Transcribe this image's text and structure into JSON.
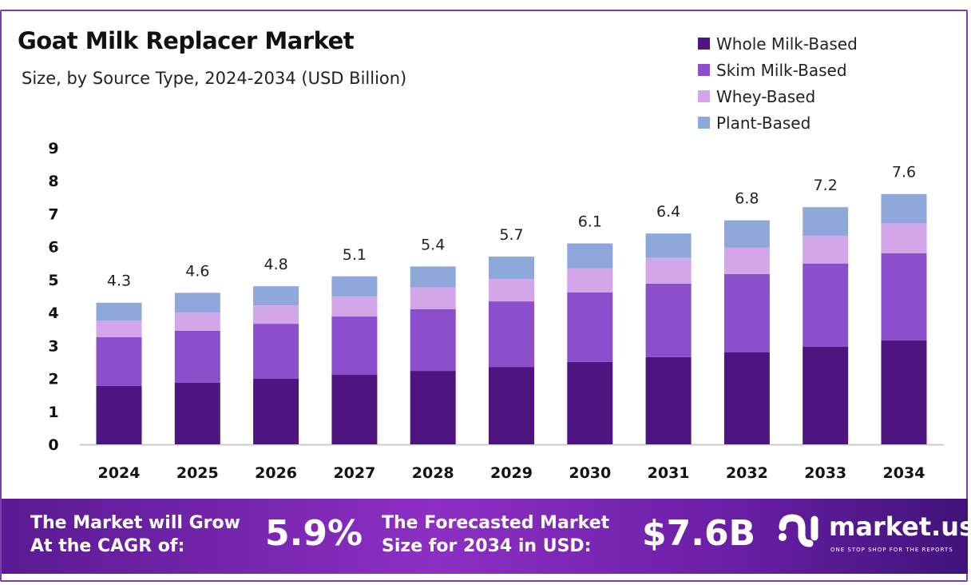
{
  "chart_data": {
    "type": "bar",
    "stacked": true,
    "title": "Goat Milk Replacer Market",
    "subtitle": "Size, by Source Type, 2024-2034 (USD Billion)",
    "categories": [
      "2024",
      "2025",
      "2026",
      "2027",
      "2028",
      "2029",
      "2030",
      "2031",
      "2032",
      "2033",
      "2034"
    ],
    "series": [
      {
        "name": "Whole Milk-Based",
        "color": "#4e1580",
        "values": [
          1.77,
          1.87,
          1.99,
          2.11,
          2.23,
          2.35,
          2.5,
          2.65,
          2.79,
          2.96,
          3.16
        ]
      },
      {
        "name": "Skim Milk-Based",
        "color": "#8b4fcc",
        "values": [
          1.48,
          1.58,
          1.67,
          1.77,
          1.87,
          1.99,
          2.11,
          2.23,
          2.38,
          2.53,
          2.64
        ]
      },
      {
        "name": "Whey-Based",
        "color": "#d3a6ea",
        "values": [
          0.51,
          0.55,
          0.56,
          0.61,
          0.66,
          0.68,
          0.73,
          0.78,
          0.8,
          0.84,
          0.9
        ]
      },
      {
        "name": "Plant-Based",
        "color": "#8fa8dc",
        "values": [
          0.54,
          0.6,
          0.58,
          0.61,
          0.64,
          0.68,
          0.76,
          0.74,
          0.83,
          0.87,
          0.9
        ]
      }
    ],
    "totals": [
      "4.3",
      "4.6",
      "4.8",
      "5.1",
      "5.4",
      "5.7",
      "6.1",
      "6.4",
      "6.8",
      "7.2",
      "7.6"
    ],
    "yticks": [
      "0",
      "1",
      "2",
      "3",
      "4",
      "5",
      "6",
      "7",
      "8",
      "9"
    ],
    "ylim": [
      0,
      9
    ],
    "grid": false,
    "legend": "top-right"
  },
  "banner": {
    "cagr_label_1": "The Market will Grow",
    "cagr_label_2": "At the CAGR of:",
    "cagr_value": "5.9%",
    "forecast_label_1": "The Forecasted Market",
    "forecast_label_2": "Size for 2034 in USD:",
    "forecast_value": "$7.6B",
    "logo_name": "market.us",
    "logo_tagline": "ONE STOP SHOP FOR THE REPORTS"
  }
}
